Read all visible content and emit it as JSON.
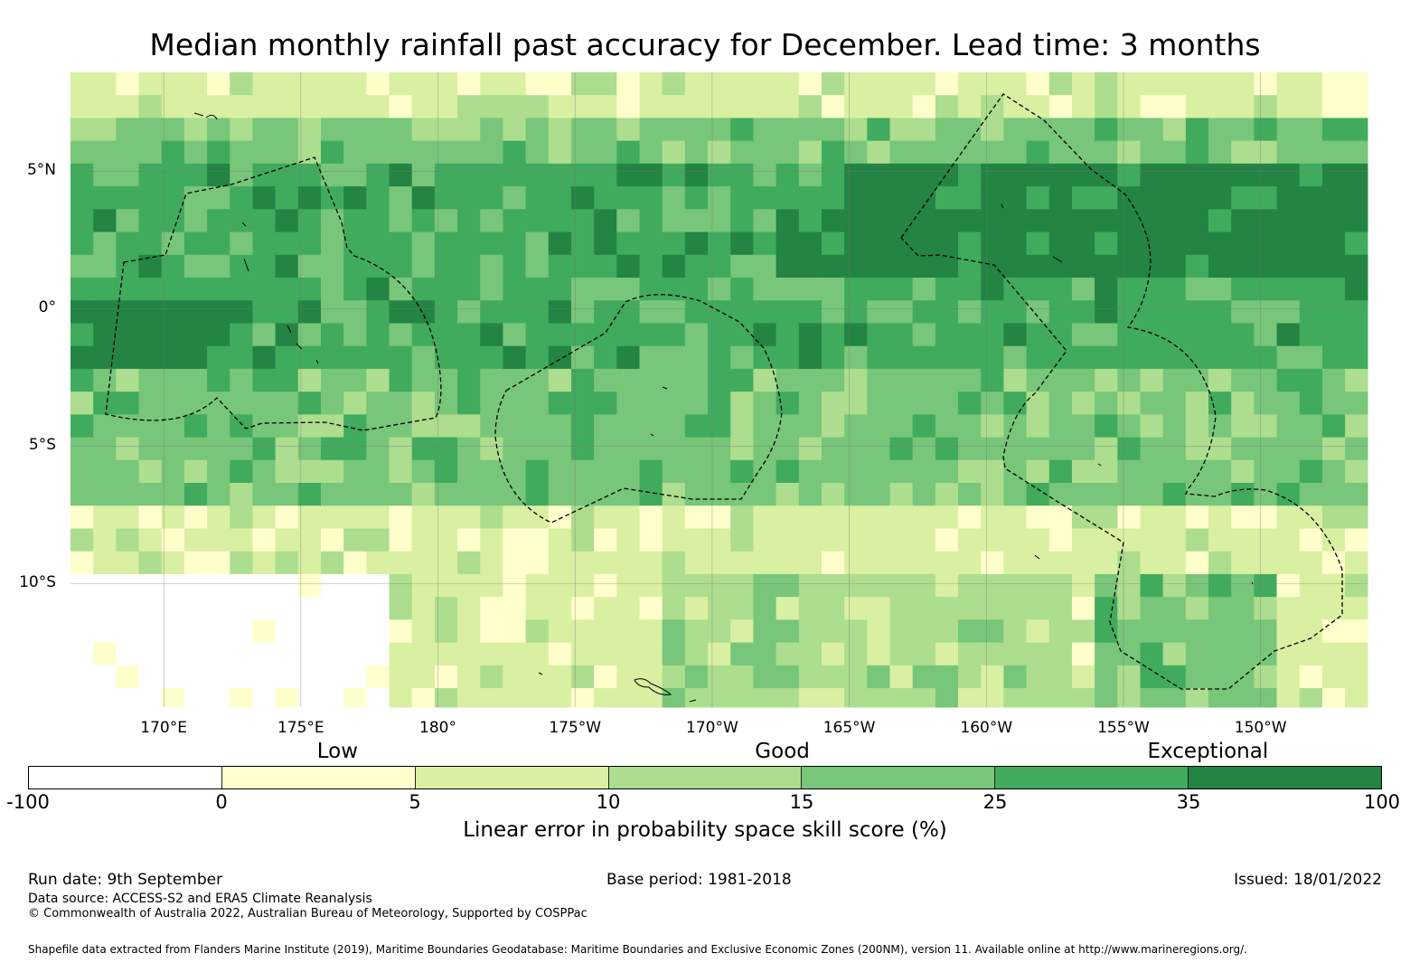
{
  "title": "Median monthly rainfall past accuracy for December. Lead time: 3 months",
  "axes": {
    "lat_labels": [
      {
        "text": "5°N",
        "lat": 5
      },
      {
        "text": "0°",
        "lat": 0
      },
      {
        "text": "5°S",
        "lat": -5
      },
      {
        "text": "10°S",
        "lat": -10
      }
    ],
    "lon_labels": [
      {
        "text": "170°E",
        "lon": 170
      },
      {
        "text": "175°E",
        "lon": 175
      },
      {
        "text": "180°",
        "lon": 180
      },
      {
        "text": "175°W",
        "lon": 185
      },
      {
        "text": "170°W",
        "lon": 190
      },
      {
        "text": "165°W",
        "lon": 195
      },
      {
        "text": "160°W",
        "lon": 200
      },
      {
        "text": "155°W",
        "lon": 205
      },
      {
        "text": "150°W",
        "lon": 210
      }
    ],
    "lon_range": [
      166.6,
      213.9
    ],
    "lat_range": [
      -14.5,
      8.6
    ]
  },
  "legend": {
    "categories": [
      {
        "text": "Low",
        "value": 3
      },
      {
        "text": "Good",
        "value": 14.5
      },
      {
        "text": "Exceptional",
        "value": 41.5
      }
    ],
    "ticks": [
      "-100",
      "0",
      "5",
      "10",
      "15",
      "25",
      "35",
      "100"
    ],
    "colors": [
      "#ffffff",
      "#ffffcc",
      "#d9f0a3",
      "#addd8e",
      "#78c679",
      "#41ab5d",
      "#238443"
    ],
    "title": "Linear error in probability space skill score (%)"
  },
  "footer": {
    "run_date": "Run date: 9th September",
    "base_period": "Base period: 1981-2018",
    "issued": "Issued: 18/01/2022",
    "data_source": "Data source: ACCESS-S2 and ERA5 Climate Reanalysis",
    "copyright": "© Commonwealth of Australia 2022, Australian Bureau of Meteorology, Supported by COSPPac",
    "shapefile": "Shapefile data extracted from Flanders Marine Institute (2019), Maritime Boundaries Geodatabase: Maritime Boundaries and Exclusive Economic Zones (200NM), version 11. Available online at http://www.marineregions.org/."
  },
  "chart_data": {
    "type": "heatmap",
    "title": "Median monthly rainfall past accuracy for December. Lead time: 3 months",
    "colorbar_label": "Linear error in probability space skill score (%)",
    "bins": [
      -100,
      0,
      5,
      10,
      15,
      25,
      35,
      100
    ],
    "bin_colors": [
      "#ffffff",
      "#ffffcc",
      "#d9f0a3",
      "#addd8e",
      "#78c679",
      "#41ab5d",
      "#238443"
    ],
    "lon_range": [
      166.6,
      213.9
    ],
    "lat_range": [
      -14.5,
      8.6
    ],
    "cell_deg": 0.83,
    "bands": [
      {
        "lat": [
          8.6,
          7.0
        ],
        "class": 2
      },
      {
        "lat": [
          7.0,
          5.5
        ],
        "class": 4
      },
      {
        "lat": [
          5.5,
          1.0
        ],
        "class": 5
      },
      {
        "lat": [
          1.0,
          -2.0
        ],
        "class": 5
      },
      {
        "lat": [
          -2.0,
          -5.0
        ],
        "class": 4
      },
      {
        "lat": [
          -5.0,
          -7.0
        ],
        "class": 4
      },
      {
        "lat": [
          -7.0,
          -9.5
        ],
        "class": 2
      },
      {
        "lat": [
          -9.5,
          -14.5
        ],
        "class": 2
      }
    ]
  }
}
